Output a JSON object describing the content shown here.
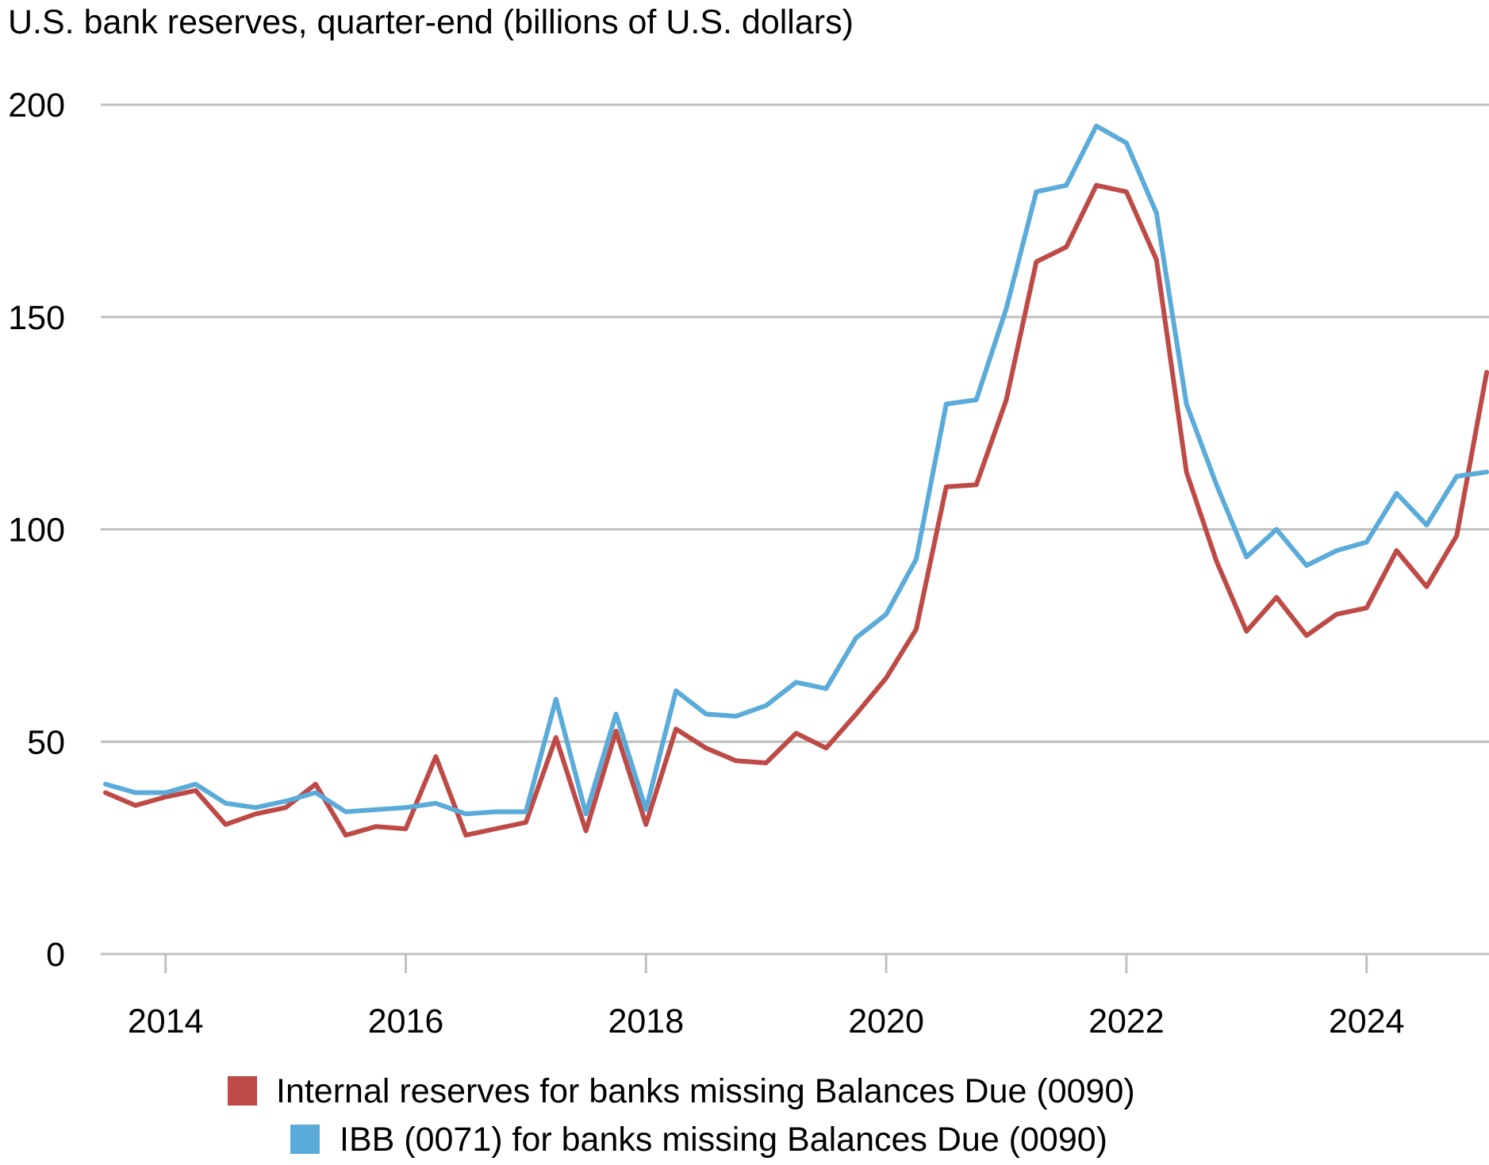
{
  "chart_data": {
    "type": "line",
    "title": "U.S. bank reserves, quarter-end (billions of U.S. dollars)",
    "xlabel": "",
    "ylabel": "",
    "ylim": [
      0,
      200
    ],
    "yticks": [
      "0",
      "50",
      "100",
      "150",
      "200"
    ],
    "xticks": [
      "2014",
      "2016",
      "2018",
      "2020",
      "2022",
      "2024"
    ],
    "grid": "horizontal",
    "legend_position": "bottom",
    "x": [
      "2013-Q3",
      "2013-Q4",
      "2014-Q1",
      "2014-Q2",
      "2014-Q3",
      "2014-Q4",
      "2015-Q1",
      "2015-Q2",
      "2015-Q3",
      "2015-Q4",
      "2016-Q1",
      "2016-Q2",
      "2016-Q3",
      "2016-Q4",
      "2017-Q1",
      "2017-Q2",
      "2017-Q3",
      "2017-Q4",
      "2018-Q1",
      "2018-Q2",
      "2018-Q3",
      "2018-Q4",
      "2019-Q1",
      "2019-Q2",
      "2019-Q3",
      "2019-Q4",
      "2020-Q1",
      "2020-Q2",
      "2020-Q3",
      "2020-Q4",
      "2021-Q1",
      "2021-Q2",
      "2021-Q3",
      "2021-Q4",
      "2022-Q1",
      "2022-Q2",
      "2022-Q3",
      "2022-Q4",
      "2023-Q1",
      "2023-Q2",
      "2023-Q3",
      "2023-Q4",
      "2024-Q1",
      "2024-Q2",
      "2024-Q3",
      "2024-Q4",
      "2025-Q1"
    ],
    "series": [
      {
        "name": "Internal reserves for banks missing Balances Due (0090)",
        "color": "#be4a47",
        "values": [
          38,
          35,
          37,
          38.5,
          30.5,
          33,
          34.5,
          40,
          28,
          30,
          29.5,
          46.5,
          28,
          29.5,
          31,
          51,
          29,
          52.5,
          30.5,
          53,
          48.5,
          45.5,
          45,
          52,
          48.5,
          56.5,
          65,
          76.5,
          110,
          110.5,
          130.5,
          163,
          166.5,
          181,
          179.5,
          163.5,
          113.5,
          92.5,
          76,
          84,
          75,
          80,
          81.5,
          95,
          86.5,
          98.5,
          137
        ]
      },
      {
        "name": "IBB (0071) for banks missing Balances Due (0090)",
        "color": "#5aabd9",
        "values": [
          40,
          38,
          38,
          40,
          35.5,
          34.5,
          36,
          38,
          33.5,
          34,
          34.5,
          35.5,
          33,
          33.5,
          33.5,
          60,
          33,
          56.5,
          34,
          62,
          56.5,
          56,
          58.5,
          64,
          62.5,
          74.5,
          80,
          93,
          129.5,
          130.5,
          152,
          179.5,
          181,
          195,
          191,
          174.5,
          129.5,
          110.5,
          93.5,
          100,
          91.5,
          95,
          97,
          108.5,
          101,
          112.5,
          113.5
        ]
      }
    ]
  }
}
